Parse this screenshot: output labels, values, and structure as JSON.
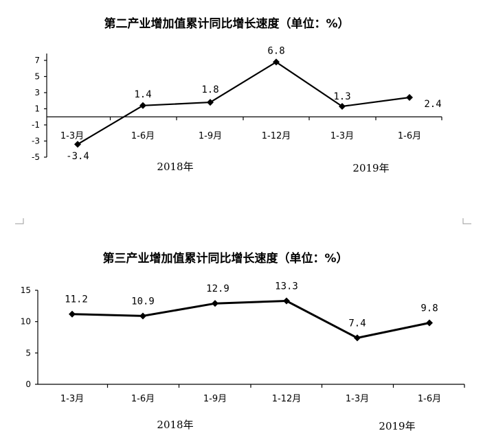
{
  "chart_data": [
    {
      "type": "line",
      "title": "第二产业增加值累计同比增长速度（单位：%）",
      "categories": [
        "1-3月",
        "1-6月",
        "1-9月",
        "1-12月",
        "1-3月",
        "1-6月"
      ],
      "values": [
        -3.4,
        1.4,
        1.8,
        6.8,
        1.3,
        2.4
      ],
      "data_labels": [
        "-3.4",
        "1.4",
        "1.8",
        "6.8",
        "1.3",
        "2.4"
      ],
      "ylim": [
        -5,
        8
      ],
      "yticks": [
        7,
        5,
        3,
        1,
        -1,
        -3,
        -5
      ],
      "ytick_labels": [
        "7",
        "5",
        "3",
        "1",
        "-1",
        "-3",
        "-5"
      ],
      "years": [
        "2018年",
        "2019年"
      ],
      "marker": "diamond",
      "color": "#000000"
    },
    {
      "type": "line",
      "title": "第三产业增加值累计同比增长速度（单位：%）",
      "categories": [
        "1-3月",
        "1-6月",
        "1-9月",
        "1-12月",
        "1-3月",
        "1-6月"
      ],
      "values": [
        11.2,
        10.9,
        12.9,
        13.3,
        7.4,
        9.8
      ],
      "data_labels": [
        "11.2",
        "10.9",
        "12.9",
        "13.3",
        "7.4",
        "9.8"
      ],
      "ylim": [
        0,
        15
      ],
      "yticks": [
        15,
        10,
        5,
        0
      ],
      "ytick_labels": [
        "15",
        "10",
        "5",
        "0"
      ],
      "years": [
        "2018年",
        "2019年"
      ],
      "marker": "diamond",
      "color": "#000000"
    }
  ]
}
